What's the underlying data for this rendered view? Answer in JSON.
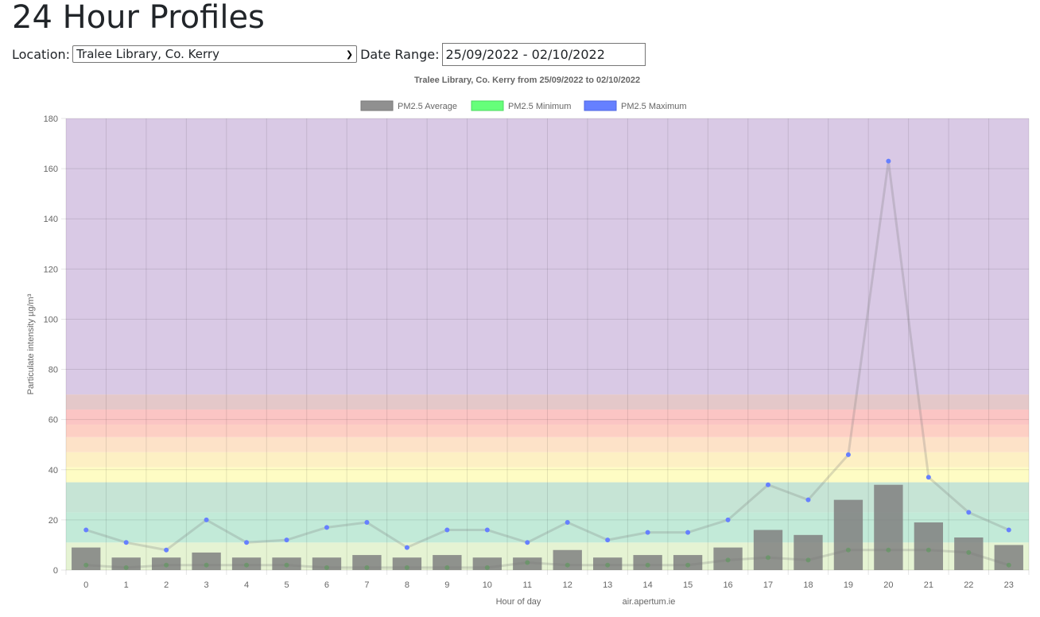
{
  "page": {
    "title": "24 Hour Profiles",
    "location_label": "Location:",
    "location_value": "Tralee Library, Co. Kerry",
    "date_label": "Date Range:",
    "date_value": "25/09/2022 - 02/10/2022",
    "footer_credit": "air.apertum.ie"
  },
  "chart_data": {
    "type": "bar",
    "title": "Tralee Library, Co. Kerry from 25/09/2022 to 02/10/2022",
    "xlabel": "Hour of day",
    "ylabel": "Particulate intensity µg/m³",
    "ylim": [
      0,
      180
    ],
    "yticks": [
      "0",
      "20",
      "40",
      "60",
      "80",
      "100",
      "120",
      "140",
      "160",
      "180"
    ],
    "categories": [
      "0",
      "1",
      "2",
      "3",
      "4",
      "5",
      "6",
      "7",
      "8",
      "9",
      "10",
      "11",
      "12",
      "13",
      "14",
      "15",
      "16",
      "17",
      "18",
      "19",
      "20",
      "21",
      "22",
      "23"
    ],
    "legend_position": "top-center",
    "series": [
      {
        "name": "PM2.5 Average",
        "kind": "bar",
        "color": "#808080",
        "values": [
          9,
          5,
          5,
          7,
          5,
          5,
          5,
          6,
          5,
          6,
          5,
          5,
          8,
          5,
          6,
          6,
          9,
          16,
          14,
          28,
          34,
          19,
          13,
          10
        ]
      },
      {
        "name": "PM2.5 Minimum",
        "kind": "line",
        "color": "#66ff7a",
        "values": [
          2,
          1,
          2,
          2,
          2,
          2,
          1,
          1,
          1,
          1,
          1,
          3,
          2,
          2,
          2,
          2,
          4,
          5,
          4,
          8,
          8,
          8,
          7,
          2
        ]
      },
      {
        "name": "PM2.5 Maximum",
        "kind": "line",
        "color": "#6680ff",
        "values": [
          16,
          11,
          8,
          20,
          11,
          12,
          17,
          19,
          9,
          16,
          16,
          11,
          19,
          12,
          15,
          15,
          20,
          34,
          28,
          46,
          163,
          37,
          23,
          16
        ]
      }
    ],
    "background_bands": [
      {
        "from": 0,
        "to": 11,
        "color": "#e5f3d3"
      },
      {
        "from": 11,
        "to": 23,
        "color": "#c2ead8"
      },
      {
        "from": 23,
        "to": 35,
        "color": "#c6e4d5"
      },
      {
        "from": 35,
        "to": 41,
        "color": "#fefcc4"
      },
      {
        "from": 41,
        "to": 47,
        "color": "#fdf0c4"
      },
      {
        "from": 47,
        "to": 53,
        "color": "#fde2c8"
      },
      {
        "from": 53,
        "to": 58,
        "color": "#fdcfc4"
      },
      {
        "from": 58,
        "to": 64,
        "color": "#fbc5c4"
      },
      {
        "from": 64,
        "to": 70,
        "color": "#e4c8c9"
      },
      {
        "from": 70,
        "to": 180,
        "color": "#d9c9e5"
      }
    ]
  }
}
